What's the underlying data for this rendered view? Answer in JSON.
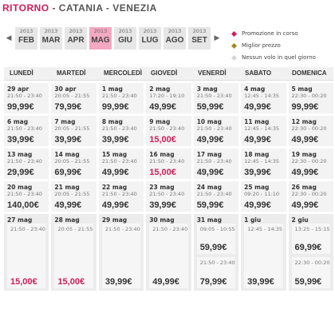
{
  "header": {
    "ritorno": "RITORNO",
    "route": " - CATANIA - VENEZIA"
  },
  "nav": {
    "prev_icon": "◀",
    "next_icon": "▶"
  },
  "months": [
    {
      "year": "2013",
      "name": "FEB"
    },
    {
      "year": "2013",
      "name": "MAR"
    },
    {
      "year": "2013",
      "name": "APR"
    },
    {
      "year": "2013",
      "name": "MAG"
    },
    {
      "year": "2013",
      "name": "GIU"
    },
    {
      "year": "2013",
      "name": "LUG"
    },
    {
      "year": "2013",
      "name": "AGO"
    },
    {
      "year": "2013",
      "name": "SET"
    }
  ],
  "active_month": "MAG",
  "legend": [
    {
      "label": "Promozione in corso",
      "color": "#cc1e5a"
    },
    {
      "label": "Miglior prezzo",
      "color": "#a08a1e"
    },
    {
      "label": "Nessun volo in quel giorno",
      "color": "#d6d6d6"
    }
  ],
  "days": [
    "LUNEDÌ",
    "MARTEDÌ",
    "MERCOLEDÌ",
    "GIOVEDÌ",
    "VENERDÌ",
    "SABATO",
    "DOMENICA"
  ],
  "weeks": [
    [
      {
        "date": "29 apr",
        "time": "21:50 - 23:40",
        "price": "99,99€",
        "promo": false
      },
      {
        "date": "30 apr",
        "time": "20:05 - 21:55",
        "price": "79,99€",
        "promo": false
      },
      {
        "date": "1 mag",
        "time": "21:50 - 23:40",
        "price": "99,99€",
        "promo": false
      },
      {
        "date": "2 mag",
        "time": "17:20 - 19:10",
        "price": "49,99€",
        "promo": false
      },
      {
        "date": "3 mag",
        "time": "21:50 - 23:40",
        "price": "59,99€",
        "promo": false
      },
      {
        "date": "4 mag",
        "time": "12:45 - 14:35",
        "price": "49,99€",
        "promo": false
      },
      {
        "date": "5 mag",
        "time": "22:30 - 00:20",
        "price": "99,99€",
        "promo": false
      }
    ],
    [
      {
        "date": "6 mag",
        "time": "21:50 - 23:40",
        "price": "39,99€",
        "promo": false
      },
      {
        "date": "7 mag",
        "time": "20:05 - 21:55",
        "price": "39,99€",
        "promo": false
      },
      {
        "date": "8 mag",
        "time": "21:50 - 23:40",
        "price": "39,99€",
        "promo": false
      },
      {
        "date": "9 mag",
        "time": "21:50 - 23:40",
        "price": "15,00€",
        "promo": true
      },
      {
        "date": "10 mag",
        "time": "21:50 - 23:40",
        "price": "49,99€",
        "promo": false
      },
      {
        "date": "11 mag",
        "time": "12:45 - 14:35",
        "price": "49,99€",
        "promo": false
      },
      {
        "date": "12 mag",
        "time": "22:30 - 00:20",
        "price": "49,99€",
        "promo": false
      }
    ],
    [
      {
        "date": "13 mag",
        "time": "21:50 - 23:40",
        "price": "29,99€",
        "promo": false
      },
      {
        "date": "14 mag",
        "time": "20:05 - 21:55",
        "price": "69,99€",
        "promo": false
      },
      {
        "date": "15 mag",
        "time": "21:50 - 23:40",
        "price": "49,99€",
        "promo": false
      },
      {
        "date": "16 mag",
        "time": "21:50 - 23:40",
        "price": "15,00€",
        "promo": true
      },
      {
        "date": "17 mag",
        "time": "21:50 - 23:40",
        "price": "49,99€",
        "promo": false
      },
      {
        "date": "18 mag",
        "time": "12:45 - 14:35",
        "price": "39,99€",
        "promo": false
      },
      {
        "date": "19 mag",
        "time": "22:30 - 00:20",
        "price": "49,99€",
        "promo": false
      }
    ],
    [
      {
        "date": "20 mag",
        "time": "21:50 - 23:40",
        "price": "140,00€",
        "promo": false
      },
      {
        "date": "21 mag",
        "time": "20:05 - 21:55",
        "price": "49,99€",
        "promo": false
      },
      {
        "date": "22 mag",
        "time": "21:50 - 23:40",
        "price": "49,99€",
        "promo": false
      },
      {
        "date": "23 mag",
        "time": "21:50 - 23:40",
        "price": "39,99€",
        "promo": false
      },
      {
        "date": "24 mag",
        "time": "21:50 - 23:40",
        "price": "59,99€",
        "promo": false
      },
      {
        "date": "25 mag",
        "time": "09:20 - 11:10",
        "price": "49,99€",
        "promo": false
      },
      {
        "date": "26 mag",
        "time": "22:30 - 00:20",
        "price": "49,99€",
        "promo": false
      }
    ]
  ],
  "last_week": [
    {
      "date": "27 mag",
      "flights": [
        {
          "time": "21:50 - 23:40",
          "price": "15,00€",
          "promo": true
        }
      ]
    },
    {
      "date": "28 mag",
      "flights": [
        {
          "time": "20:05 - 21:55",
          "price": "15,00€",
          "promo": true
        }
      ]
    },
    {
      "date": "29 mag",
      "flights": [
        {
          "time": "21:50 - 23:40",
          "price": "39,99€",
          "promo": false
        }
      ]
    },
    {
      "date": "30 mag",
      "flights": [
        {
          "time": "21:50 - 23:40",
          "price": "49,99€",
          "promo": false
        }
      ]
    },
    {
      "date": "31 mag",
      "flights": [
        {
          "time": "09:05 - 10:55",
          "price": "59,99€",
          "promo": false
        },
        {
          "time": "21:50 - 23:40",
          "price": "79,99€",
          "promo": false
        }
      ]
    },
    {
      "date": "1 giu",
      "flights": [
        {
          "time": "12:45 - 14:35",
          "price": "39,99€",
          "promo": false
        }
      ]
    },
    {
      "date": "2 giu",
      "flights": [
        {
          "time": "13:25 - 15:15",
          "price": "69,99€",
          "promo": false
        },
        {
          "time": "22:30 - 00:20",
          "price": "59,99€",
          "promo": false
        }
      ]
    }
  ]
}
